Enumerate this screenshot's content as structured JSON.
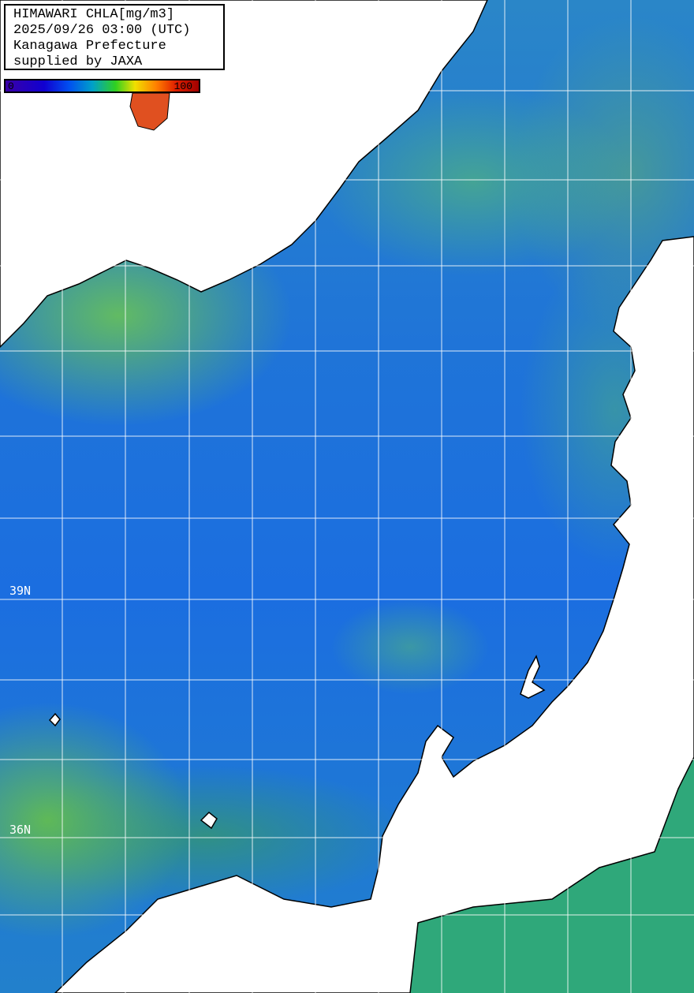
{
  "title": {
    "line1": "HIMAWARI CHLA[mg/m3]",
    "line2": "2025/09/26 03:00 (UTC)",
    "line3": "Kanagawa Prefecture",
    "line4": "supplied by JAXA"
  },
  "colorbar": {
    "min_label": "0",
    "max_label": "100",
    "colors": [
      "#3a00a8",
      "#0050f0",
      "#00a0c8",
      "#30d020",
      "#f0e000",
      "#ff8000",
      "#a00000"
    ]
  },
  "latitude_labels": [
    "39N",
    "36N"
  ],
  "colors": {
    "ocean": "#1f74d8",
    "land": "#ffffff",
    "grid": "#ffffff",
    "coastline": "#000000"
  }
}
